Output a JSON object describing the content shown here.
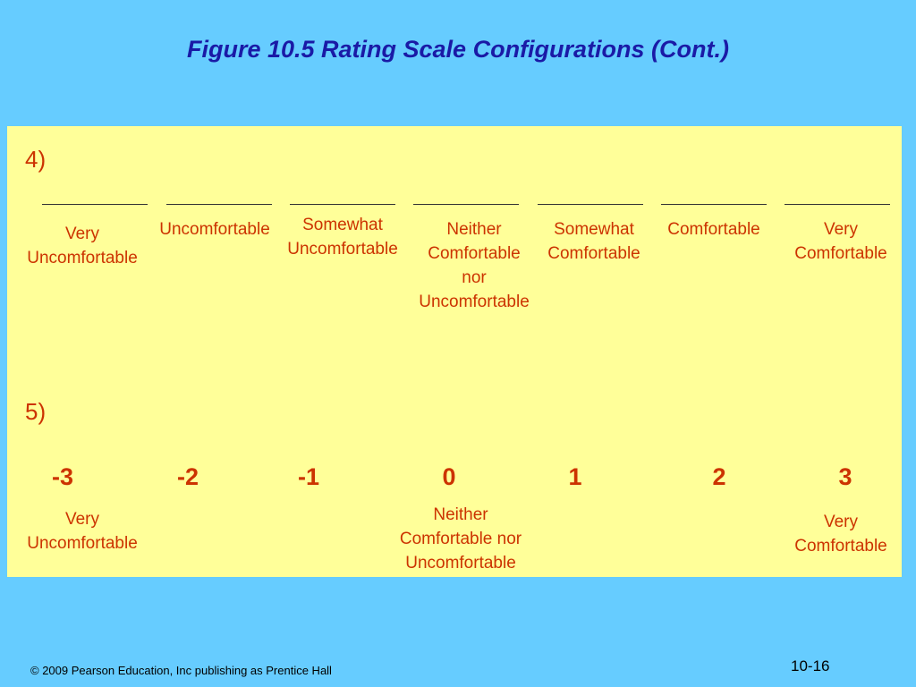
{
  "title": "Figure 10.5  Rating Scale Configurations (Cont.)",
  "scale_4": {
    "number": "4)",
    "options": [
      [
        "Very",
        "Uncomfortable"
      ],
      [
        "Uncomfortable"
      ],
      [
        "Somewhat",
        "Uncomfortable"
      ],
      [
        "Neither",
        "Comfortable",
        "nor",
        "Uncomfortable"
      ],
      [
        "Somewhat",
        "Comfortable"
      ],
      [
        "Comfortable"
      ],
      [
        "Very",
        "Comfortable"
      ]
    ]
  },
  "scale_5": {
    "number": "5)",
    "points": [
      -3,
      -2,
      -1,
      0,
      1,
      2,
      3
    ],
    "anchors": [
      [
        "Very",
        "Uncomfortable"
      ],
      [
        "Neither",
        "Comfortable nor",
        "Uncomfortable"
      ],
      [
        "Very",
        "Comfortable"
      ]
    ]
  },
  "footer": {
    "copyright": "© 2009 Pearson Education, Inc publishing as Prentice Hall",
    "page": "10-16"
  }
}
